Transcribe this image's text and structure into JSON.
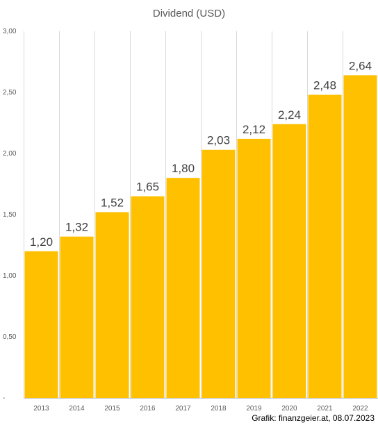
{
  "chart_data": {
    "type": "bar",
    "title": "Dividend (USD)",
    "categories": [
      "2013",
      "2014",
      "2015",
      "2016",
      "2017",
      "2018",
      "2019",
      "2020",
      "2021",
      "2022"
    ],
    "values": [
      1.2,
      1.32,
      1.52,
      1.65,
      1.8,
      2.03,
      2.12,
      2.24,
      2.48,
      2.64
    ],
    "data_labels": [
      "1,20",
      "1,32",
      "1,52",
      "1,65",
      "1,80",
      "2,03",
      "2,12",
      "2,24",
      "2,48",
      "2,64"
    ],
    "ylim": [
      0,
      3
    ],
    "yticks": [
      0,
      0.5,
      1.0,
      1.5,
      2.0,
      2.5,
      3.0
    ],
    "ytick_labels": [
      "-",
      "0,50",
      "1,00",
      "1,50",
      "2,00",
      "2,50",
      "3,00"
    ],
    "xlabel": "",
    "ylabel": "",
    "grid": "vertical",
    "bar_color": "#FFC000"
  },
  "credit": "Grafik: finanzgeier.at, 08.07.2023"
}
